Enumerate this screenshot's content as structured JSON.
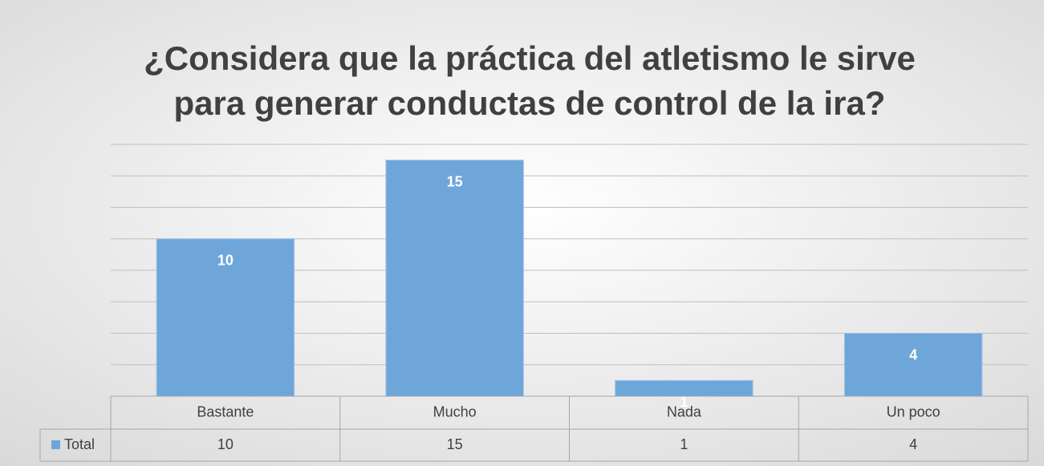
{
  "chart_data": {
    "type": "bar",
    "title": [
      "¿Considera que la práctica del  atletismo le sirve",
      "para generar conductas de control de la ira?"
    ],
    "categories": [
      "Bastante",
      "Mucho",
      "Nada",
      "Un poco"
    ],
    "series": [
      {
        "name": "Total",
        "color": "#6fa6da",
        "values": [
          10,
          15,
          1,
          4
        ]
      }
    ],
    "ylim": [
      0,
      16
    ],
    "yticks": [
      0,
      2,
      4,
      6,
      8,
      10,
      12,
      14,
      16
    ],
    "grid": true
  }
}
